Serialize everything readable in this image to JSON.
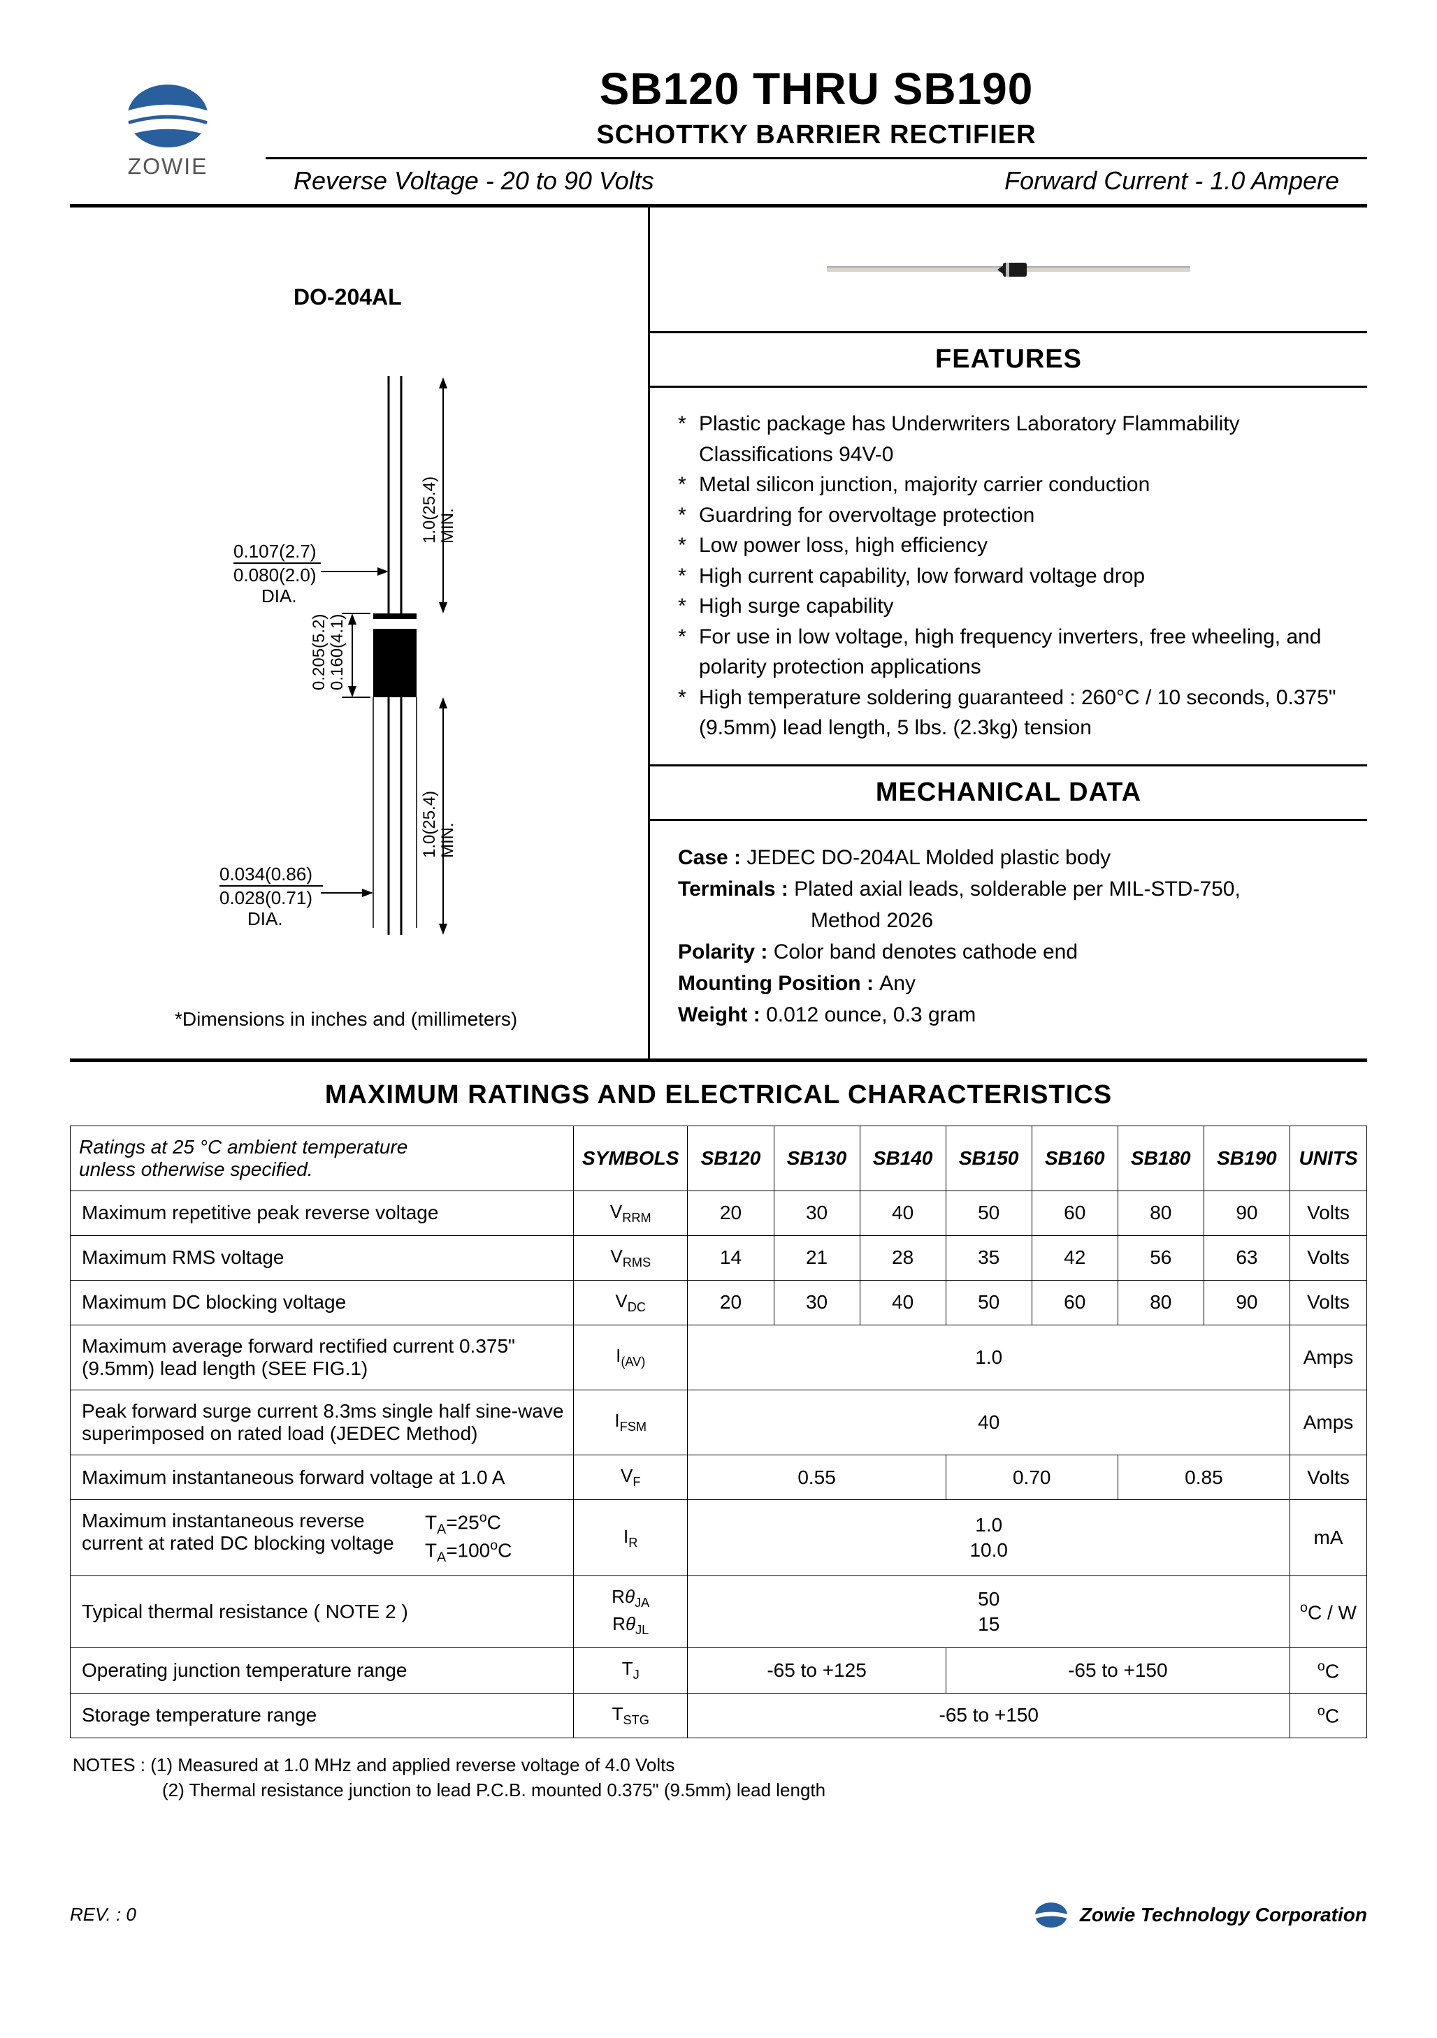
{
  "header": {
    "logo_text": "ZOWIE",
    "title": "SB120  THRU  SB190",
    "subtitle": "SCHOTTKY BARRIER RECTIFIER",
    "spec_left": "Reverse Voltage - 20 to 90 Volts",
    "spec_right": "Forward Current - 1.0 Ampere"
  },
  "package_label": "DO-204AL",
  "diagram": {
    "lead_dia_top": "0.107(2.7)",
    "lead_dia_bot": "0.080(2.0)",
    "dia_label": "DIA.",
    "body_len_top": "0.205(5.2)",
    "body_len_bot": "0.160(4.1)",
    "body_dia_top": "0.034(0.86)",
    "body_dia_bot": "0.028(0.71)",
    "lead_len": "1.0(25.4)",
    "min": "MIN.",
    "note": "*Dimensions in inches and (millimeters)"
  },
  "features": {
    "heading": "FEATURES",
    "items": [
      "Plastic package has Underwriters Laboratory Flammability Classifications 94V-0",
      "Metal silicon junction, majority carrier conduction",
      "Guardring for overvoltage protection",
      "Low power loss, high efficiency",
      "High current capability, low forward voltage drop",
      "High surge capability",
      "For use in low voltage, high frequency inverters, free wheeling, and polarity protection applications",
      "High temperature soldering guaranteed : 260°C / 10 seconds, 0.375\" (9.5mm) lead length, 5 lbs. (2.3kg) tension"
    ]
  },
  "mechanical": {
    "heading": "MECHANICAL DATA",
    "case_lbl": "Case : ",
    "case_val": "JEDEC DO-204AL Molded plastic body",
    "term_lbl": "Terminals : ",
    "term_val": "Plated axial leads, solderable per MIL-STD-750,",
    "term_val2": "Method 2026",
    "pol_lbl": "Polarity : ",
    "pol_val": "Color band denotes cathode end",
    "mount_lbl": "Mounting Position : ",
    "mount_val": "Any",
    "weight_lbl": "Weight : ",
    "weight_val": "0.012 ounce, 0.3 gram"
  },
  "ratings": {
    "heading": "MAXIMUM RATINGS AND ELECTRICAL CHARACTERISTICS",
    "cond1": "Ratings at 25 °C ambient temperature",
    "cond2": "unless otherwise specified.",
    "col_symbols": "SYMBOLS",
    "parts": [
      "SB120",
      "SB130",
      "SB140",
      "SB150",
      "SB160",
      "SB180",
      "SB190"
    ],
    "col_units": "UNITS",
    "rows": {
      "vrrm": {
        "desc": "Maximum repetitive peak reverse voltage",
        "sym": "VRRM",
        "vals": [
          "20",
          "30",
          "40",
          "50",
          "60",
          "80",
          "90"
        ],
        "unit": "Volts"
      },
      "vrms": {
        "desc": "Maximum RMS voltage",
        "sym": "VRMS",
        "vals": [
          "14",
          "21",
          "28",
          "35",
          "42",
          "56",
          "63"
        ],
        "unit": "Volts"
      },
      "vdc": {
        "desc": "Maximum DC blocking voltage",
        "sym": "VDC",
        "vals": [
          "20",
          "30",
          "40",
          "50",
          "60",
          "80",
          "90"
        ],
        "unit": "Volts"
      },
      "iav": {
        "desc": "Maximum average forward rectified current 0.375\" (9.5mm) lead length (SEE FIG.1)",
        "sym": "I(AV)",
        "val": "1.0",
        "unit": "Amps"
      },
      "ifsm": {
        "desc": "Peak forward surge current 8.3ms single half sine-wave superimposed on rated load (JEDEC Method)",
        "sym": "IFSM",
        "val": "40",
        "unit": "Amps"
      },
      "vf": {
        "desc": "Maximum instantaneous forward voltage at 1.0 A",
        "sym": "VF",
        "vals3": [
          "0.55",
          "0.70",
          "0.85"
        ],
        "unit": "Volts"
      },
      "ir": {
        "desc_l1": "Maximum instantaneous reverse",
        "desc_l2": "current at rated DC blocking voltage",
        "cond1": "TA=25°C",
        "cond2": "TA=100°C",
        "sym": "IR",
        "val1": "1.0",
        "val2": "10.0",
        "unit": "mA"
      },
      "rth": {
        "desc": "Typical thermal resistance ( NOTE 2 )",
        "sym1": "RθJA",
        "sym2": "RθJL",
        "val1": "50",
        "val2": "15",
        "unit": "°C / W"
      },
      "tj": {
        "desc": "Operating junction temperature range",
        "sym": "TJ",
        "val1": "-65 to +125",
        "val2": "-65 to +150",
        "unit": "°C"
      },
      "tstg": {
        "desc": "Storage temperature range",
        "sym": "TSTG",
        "val": "-65 to +150",
        "unit": "°C"
      }
    }
  },
  "notes": {
    "l1": "NOTES : (1) Measured at 1.0 MHz and applied reverse voltage of 4.0 Volts",
    "l2": "(2) Thermal resistance junction to lead P.C.B. mounted 0.375\" (9.5mm) lead length"
  },
  "footer": {
    "rev": "REV. : 0",
    "corp": "Zowie Technology Corporation"
  },
  "colors": {
    "logo_blue": "#2a5f9e",
    "line": "#000000"
  }
}
